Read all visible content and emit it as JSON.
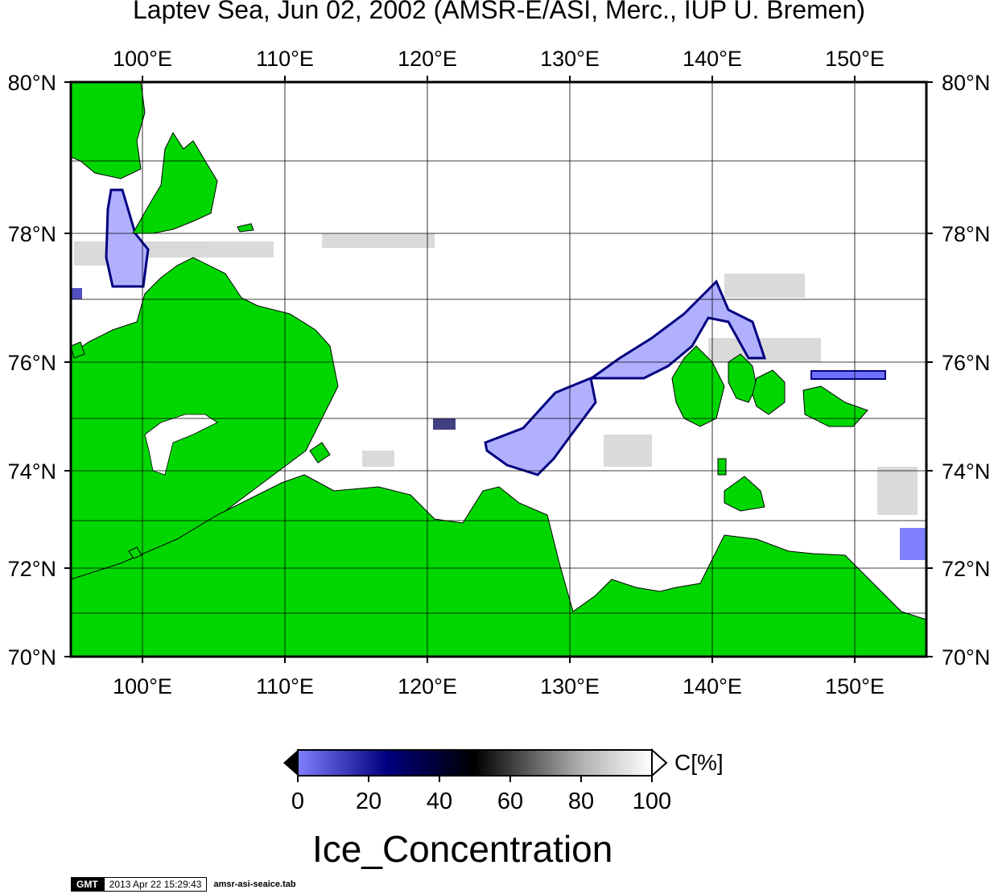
{
  "title": "Laptev Sea, Jun 02, 2002 (AMSR-E/ASI, Merc., IUP U. Bremen)",
  "map": {
    "lon_labels": [
      "100°E",
      "110°E",
      "120°E",
      "130°E",
      "140°E",
      "150°E"
    ],
    "lat_labels": [
      "80°N",
      "78°N",
      "76°N",
      "74°N",
      "72°N",
      "70°N"
    ],
    "colors": {
      "land": "#00d700",
      "ocean": "#ffffff",
      "grid": "#000000"
    }
  },
  "colorbar": {
    "unit": "C[%]",
    "ticks": [
      "0",
      "20",
      "40",
      "60",
      "80",
      "100"
    ],
    "title": "Ice_Concentration",
    "stops": [
      "#7f7fff",
      "#000080",
      "#000000",
      "#808080",
      "#ffffff"
    ]
  },
  "footer": {
    "logo": "GMT",
    "timestamp": "2013 Apr 22 15:29:43",
    "filename": "amsr-asi-seaice.tab"
  }
}
